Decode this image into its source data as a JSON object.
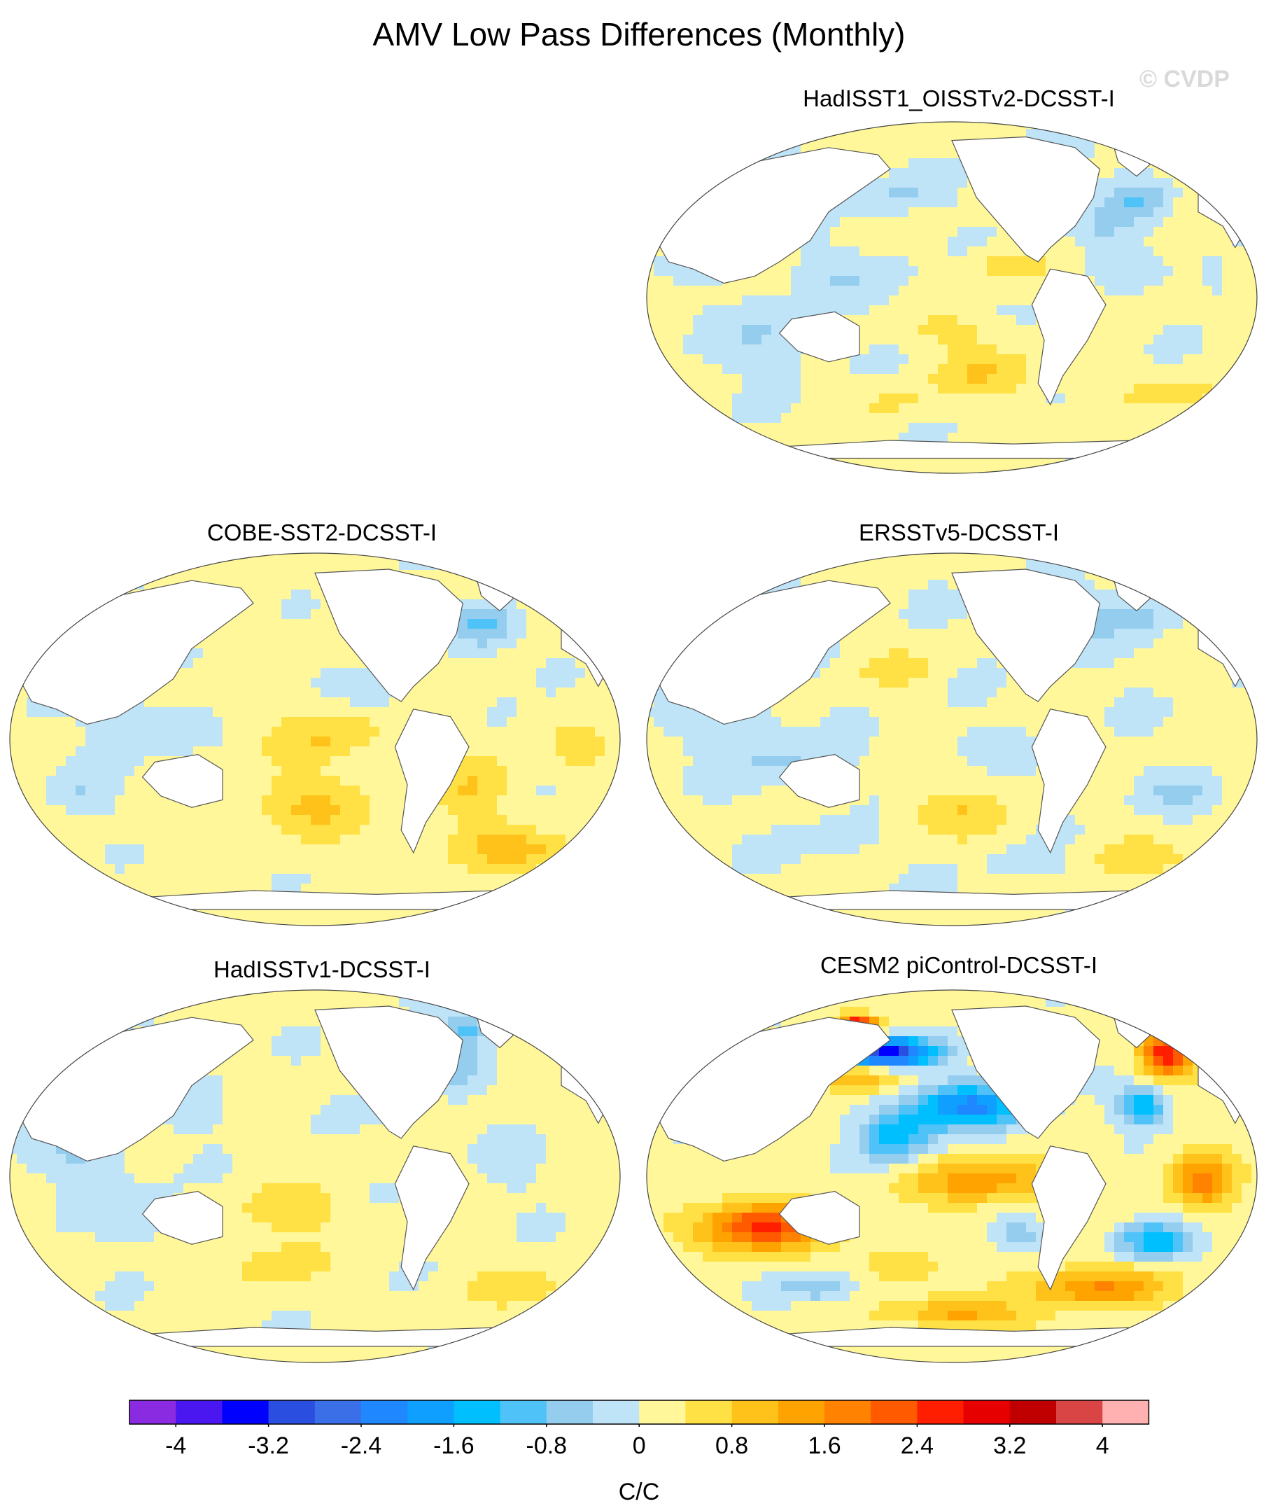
{
  "title": "AMV Low Pass Differences (Monthly)",
  "watermark": "© CVDP",
  "panels": [
    {
      "id": "hadisst1-oisstv2",
      "title": "HadISST1_OISSTv2-DCSST-I",
      "pattern": "obs1"
    },
    {
      "id": "cobe-sst2",
      "title": "COBE-SST2-DCSST-I",
      "pattern": "obs2"
    },
    {
      "id": "ersstv5",
      "title": "ERSSTv5-DCSST-I",
      "pattern": "obs3"
    },
    {
      "id": "hadisstv1",
      "title": "HadISSTv1-DCSST-I",
      "pattern": "obs4"
    },
    {
      "id": "cesm2-picontrol",
      "title": "CESM2 piControl-DCSST-I",
      "pattern": "model"
    }
  ],
  "colorbar": {
    "unit": "C/C",
    "tick_labels": [
      "-4",
      "-3.2",
      "-2.4",
      "-1.6",
      "-0.8",
      "0",
      "0.8",
      "1.6",
      "2.4",
      "3.2",
      "4"
    ],
    "colors": [
      "#8a2be2",
      "#4b17f0",
      "#0000ff",
      "#2a4fe0",
      "#3a6fe8",
      "#1f87ff",
      "#0fa0ff",
      "#00bfff",
      "#4fc3f7",
      "#95cdef",
      "#bfe3f7",
      "#fff79a",
      "#ffe045",
      "#ffc21a",
      "#ffa300",
      "#ff8200",
      "#ff5a00",
      "#ff1e00",
      "#e60000",
      "#c00000",
      "#d94545",
      "#ffb0b0"
    ]
  }
}
